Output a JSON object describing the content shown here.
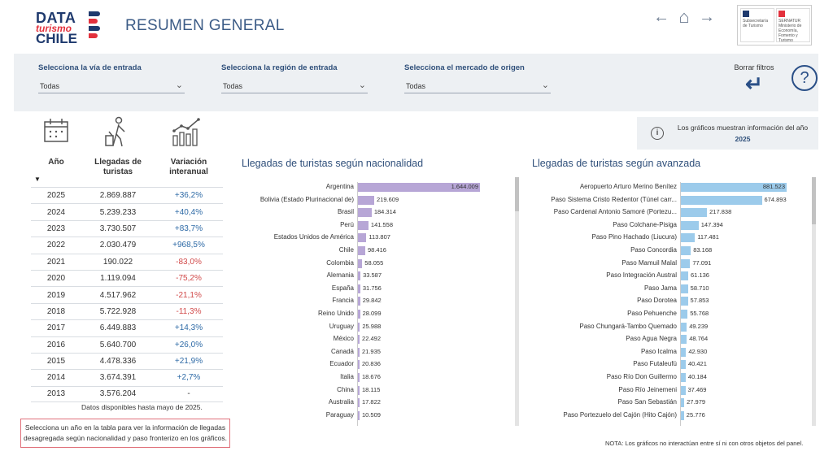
{
  "app": {
    "logo": {
      "line1": "DATA",
      "line2": "turismo",
      "line3": "CHILE"
    },
    "title": "RESUMEN GENERAL",
    "nav": {
      "back": "←",
      "home": "⌂",
      "forward": "→"
    },
    "gov_logo_left": "Subsecretaría de Turismo",
    "gov_logo_right": "SERNATUR Ministerio de Economía, Fomento y Turismo"
  },
  "filters": {
    "via": {
      "label": "Selecciona la vía de entrada",
      "value": "Todas"
    },
    "region": {
      "label": "Selecciona la región de entrada",
      "value": "Todas"
    },
    "mercado": {
      "label": "Selecciona el mercado de origen",
      "value": "Todas"
    },
    "clear_label": "Borrar filtros",
    "help": "?"
  },
  "banner": {
    "text": "Los gráficos muestran información del año",
    "year": "2025"
  },
  "table": {
    "headers": {
      "year": "Año",
      "arrivals_1": "Llegadas de",
      "arrivals_2": "turistas",
      "variation_1": "Variación",
      "variation_2": "interanual"
    },
    "rows": [
      {
        "year": "2025",
        "arrivals": "2.869.887",
        "variation": "+36,2%",
        "tone": "pos"
      },
      {
        "year": "2024",
        "arrivals": "5.239.233",
        "variation": "+40,4%",
        "tone": "pos"
      },
      {
        "year": "2023",
        "arrivals": "3.730.507",
        "variation": "+83,7%",
        "tone": "pos"
      },
      {
        "year": "2022",
        "arrivals": "2.030.479",
        "variation": "+968,5%",
        "tone": "pos"
      },
      {
        "year": "2021",
        "arrivals": "190.022",
        "variation": "-83,0%",
        "tone": "neg"
      },
      {
        "year": "2020",
        "arrivals": "1.119.094",
        "variation": "-75,2%",
        "tone": "neg"
      },
      {
        "year": "2019",
        "arrivals": "4.517.962",
        "variation": "-21,1%",
        "tone": "neg"
      },
      {
        "year": "2018",
        "arrivals": "5.722.928",
        "variation": "-11,3%",
        "tone": "neg"
      },
      {
        "year": "2017",
        "arrivals": "6.449.883",
        "variation": "+14,3%",
        "tone": "pos"
      },
      {
        "year": "2016",
        "arrivals": "5.640.700",
        "variation": "+26,0%",
        "tone": "pos"
      },
      {
        "year": "2015",
        "arrivals": "4.478.336",
        "variation": "+21,9%",
        "tone": "pos"
      },
      {
        "year": "2014",
        "arrivals": "3.674.391",
        "variation": "+2,7%",
        "tone": "pos"
      },
      {
        "year": "2013",
        "arrivals": "3.576.204",
        "variation": "-",
        "tone": "neutral"
      }
    ],
    "note": "Datos disponibles hasta mayo de 2025.",
    "instruction_1": "Selecciona un año en la tabla para ver la información de llegadas",
    "instruction_2": "desagregada según nacionalidad y paso fronterizo en los gráficos."
  },
  "chart_data": [
    {
      "type": "bar",
      "title": "Llegadas de turistas según nacionalidad",
      "color": "#b7a6d6",
      "categories": [
        "Argentina",
        "Bolivia (Estado Plurinacional de)",
        "Brasil",
        "Perú",
        "Estados Unidos de América",
        "Chile",
        "Colombia",
        "Alemania",
        "España",
        "Francia",
        "Reino Unido",
        "Uruguay",
        "México",
        "Canadá",
        "Ecuador",
        "Italia",
        "China",
        "Australia",
        "Paraguay"
      ],
      "values": [
        1644009,
        219609,
        184314,
        141558,
        113807,
        98416,
        58055,
        33587,
        31756,
        29842,
        28099,
        25988,
        22492,
        21935,
        20836,
        18676,
        18115,
        17822,
        10509
      ],
      "value_labels": [
        "1.644.009",
        "219.609",
        "184.314",
        "141.558",
        "113.807",
        "98.416",
        "58.055",
        "33.587",
        "31.756",
        "29.842",
        "28.099",
        "25.988",
        "22.492",
        "21.935",
        "20.836",
        "18.676",
        "18.115",
        "17.822",
        "10.509"
      ]
    },
    {
      "type": "bar",
      "title": "Llegadas de turistas según avanzada",
      "color": "#9ccbeb",
      "categories": [
        "Aeropuerto Arturo Merino Benítez",
        "Paso Sistema Cristo Redentor (Túnel carr...",
        "Paso Cardenal Antonio Samoré (Portezu...",
        "Paso Colchane-Pisiga",
        "Paso Pino Hachado (Liucura)",
        "Paso Concordia",
        "Paso Mamuil Malal",
        "Paso Integración Austral",
        "Paso Jama",
        "Paso Dorotea",
        "Paso Pehuenche",
        "Paso Chungará-Tambo Quemado",
        "Paso Agua Negra",
        "Paso Icalma",
        "Paso Futaleufú",
        "Paso Río Don Guillermo",
        "Paso Río Jeinemeni",
        "Paso San Sebastián",
        "Paso Portezuelo del Cajón (Hito Cajón)"
      ],
      "values": [
        881523,
        674893,
        217838,
        147394,
        117481,
        83168,
        77091,
        61136,
        58710,
        57853,
        55768,
        49239,
        48764,
        42930,
        40421,
        40184,
        37469,
        27979,
        25776
      ],
      "value_labels": [
        "881.523",
        "674.893",
        "217.838",
        "147.394",
        "117.481",
        "83.168",
        "77.091",
        "61.136",
        "58.710",
        "57.853",
        "55.768",
        "49.239",
        "48.764",
        "42.930",
        "40.421",
        "40.184",
        "37.469",
        "27.979",
        "25.776"
      ]
    }
  ],
  "footnote": "NOTA: Los gráficos no interactúan entre sí ni con otros objetos del panel."
}
